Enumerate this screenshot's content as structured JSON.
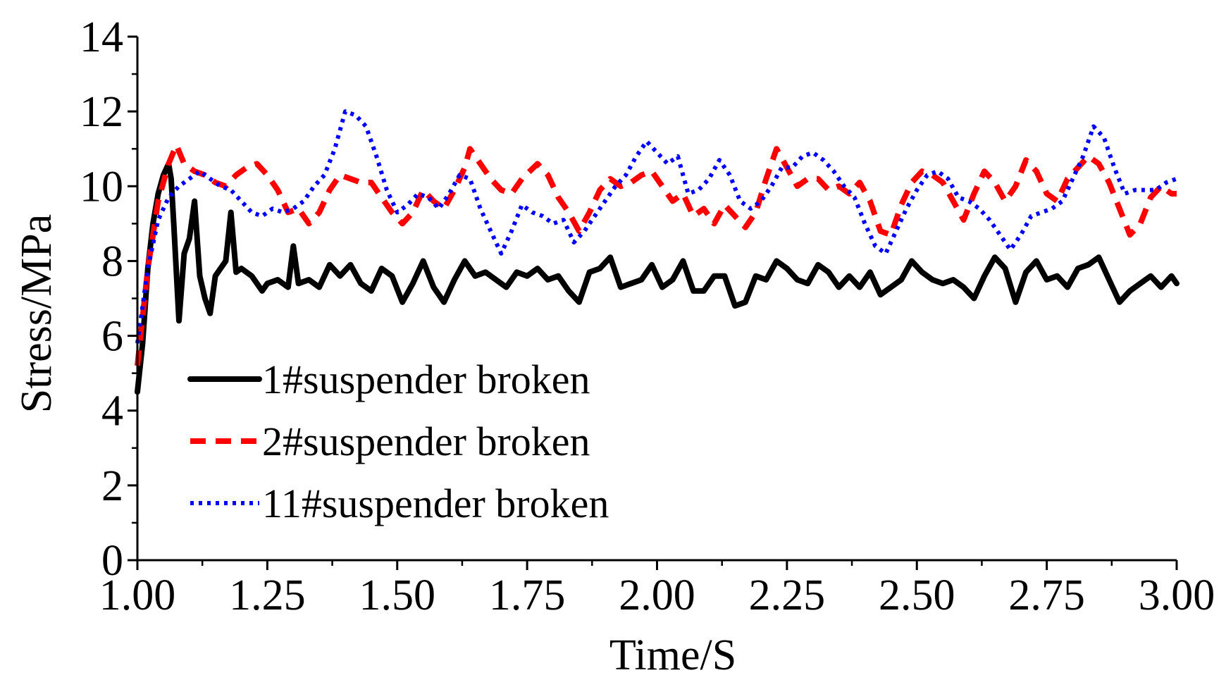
{
  "chart_data": {
    "type": "line",
    "xlabel": "Time/S",
    "ylabel": "Stress/MPa",
    "xlim": [
      1.0,
      3.0
    ],
    "ylim": [
      0,
      14
    ],
    "xticks": [
      "1.00",
      "1.25",
      "1.50",
      "1.75",
      "2.00",
      "2.25",
      "2.50",
      "2.75",
      "3.00"
    ],
    "xtick_values": [
      1.0,
      1.25,
      1.5,
      1.75,
      2.0,
      2.25,
      2.5,
      2.75,
      3.0
    ],
    "yticks": [
      "0",
      "2",
      "4",
      "6",
      "8",
      "10",
      "12",
      "14"
    ],
    "ytick_values": [
      0,
      2,
      4,
      6,
      8,
      10,
      12,
      14
    ],
    "grid": false,
    "legend_position": "lower-left",
    "series": [
      {
        "name": "1#suspender broken",
        "color": "#000000",
        "style": "solid",
        "x": [
          1.0,
          1.01,
          1.02,
          1.03,
          1.04,
          1.05,
          1.06,
          1.065,
          1.07,
          1.08,
          1.09,
          1.1,
          1.11,
          1.12,
          1.13,
          1.14,
          1.15,
          1.16,
          1.17,
          1.18,
          1.19,
          1.2,
          1.22,
          1.24,
          1.25,
          1.27,
          1.29,
          1.3,
          1.31,
          1.33,
          1.35,
          1.37,
          1.39,
          1.41,
          1.43,
          1.45,
          1.47,
          1.49,
          1.51,
          1.53,
          1.55,
          1.57,
          1.59,
          1.61,
          1.63,
          1.65,
          1.67,
          1.69,
          1.71,
          1.73,
          1.75,
          1.77,
          1.79,
          1.81,
          1.83,
          1.85,
          1.87,
          1.89,
          1.91,
          1.93,
          1.95,
          1.97,
          1.99,
          2.01,
          2.03,
          2.05,
          2.07,
          2.09,
          2.11,
          2.13,
          2.15,
          2.17,
          2.19,
          2.21,
          2.23,
          2.25,
          2.27,
          2.29,
          2.31,
          2.33,
          2.35,
          2.37,
          2.39,
          2.41,
          2.43,
          2.45,
          2.47,
          2.49,
          2.51,
          2.53,
          2.55,
          2.57,
          2.59,
          2.61,
          2.63,
          2.65,
          2.67,
          2.69,
          2.71,
          2.73,
          2.75,
          2.77,
          2.79,
          2.81,
          2.83,
          2.85,
          2.87,
          2.89,
          2.91,
          2.93,
          2.95,
          2.97,
          2.99,
          3.0
        ],
        "y": [
          4.5,
          5.8,
          7.8,
          9.0,
          9.8,
          10.3,
          10.6,
          10.2,
          9.0,
          6.4,
          8.2,
          8.6,
          9.6,
          7.6,
          7.0,
          6.6,
          7.6,
          7.8,
          8.0,
          9.3,
          7.7,
          7.8,
          7.6,
          7.2,
          7.4,
          7.5,
          7.3,
          8.4,
          7.4,
          7.5,
          7.3,
          7.9,
          7.6,
          7.9,
          7.4,
          7.2,
          7.8,
          7.6,
          6.9,
          7.4,
          8.0,
          7.3,
          6.9,
          7.5,
          8.0,
          7.6,
          7.7,
          7.5,
          7.3,
          7.7,
          7.6,
          7.8,
          7.5,
          7.6,
          7.2,
          6.9,
          7.7,
          7.8,
          8.1,
          7.3,
          7.4,
          7.5,
          7.9,
          7.3,
          7.5,
          8.0,
          7.2,
          7.2,
          7.6,
          7.6,
          6.8,
          6.9,
          7.6,
          7.5,
          8.0,
          7.8,
          7.5,
          7.4,
          7.9,
          7.7,
          7.3,
          7.6,
          7.3,
          7.7,
          7.1,
          7.3,
          7.5,
          8.0,
          7.7,
          7.5,
          7.4,
          7.5,
          7.3,
          7.0,
          7.6,
          8.1,
          7.8,
          6.9,
          7.7,
          8.0,
          7.5,
          7.6,
          7.3,
          7.8,
          7.9,
          8.1,
          7.5,
          6.9,
          7.2,
          7.4,
          7.6,
          7.3,
          7.6,
          7.4
        ],
        "legend_label": "1#suspender broken"
      },
      {
        "name": "2#suspender broken",
        "color": "#ff0000",
        "style": "dashed",
        "x": [
          1.0,
          1.02,
          1.04,
          1.06,
          1.075,
          1.09,
          1.11,
          1.13,
          1.15,
          1.17,
          1.19,
          1.21,
          1.23,
          1.25,
          1.27,
          1.29,
          1.31,
          1.33,
          1.35,
          1.37,
          1.39,
          1.41,
          1.43,
          1.45,
          1.47,
          1.49,
          1.51,
          1.53,
          1.55,
          1.57,
          1.59,
          1.61,
          1.63,
          1.64,
          1.66,
          1.68,
          1.7,
          1.72,
          1.74,
          1.77,
          1.79,
          1.81,
          1.83,
          1.85,
          1.87,
          1.89,
          1.91,
          1.93,
          1.95,
          1.97,
          1.99,
          2.01,
          2.03,
          2.05,
          2.07,
          2.09,
          2.11,
          2.13,
          2.15,
          2.17,
          2.19,
          2.21,
          2.23,
          2.25,
          2.27,
          2.29,
          2.31,
          2.33,
          2.35,
          2.37,
          2.39,
          2.41,
          2.43,
          2.45,
          2.47,
          2.49,
          2.51,
          2.53,
          2.55,
          2.57,
          2.59,
          2.61,
          2.63,
          2.65,
          2.67,
          2.69,
          2.71,
          2.73,
          2.75,
          2.77,
          2.79,
          2.81,
          2.83,
          2.85,
          2.87,
          2.89,
          2.91,
          2.93,
          2.95,
          2.97,
          2.99,
          3.0
        ],
        "y": [
          5.2,
          7.8,
          9.6,
          10.6,
          11.1,
          10.6,
          10.4,
          10.3,
          10.1,
          10.0,
          10.3,
          10.5,
          10.6,
          10.3,
          9.9,
          9.3,
          9.4,
          9.0,
          9.3,
          9.9,
          10.3,
          10.2,
          10.1,
          10.1,
          9.7,
          9.3,
          9.0,
          9.3,
          9.9,
          9.6,
          9.4,
          9.9,
          10.5,
          11.0,
          10.6,
          10.2,
          9.9,
          9.8,
          10.2,
          10.6,
          10.3,
          9.7,
          9.3,
          8.8,
          9.3,
          9.9,
          10.2,
          10.0,
          10.1,
          10.3,
          10.4,
          10.0,
          9.6,
          9.8,
          9.2,
          9.4,
          9.0,
          9.5,
          9.2,
          8.9,
          9.3,
          10.2,
          11.0,
          10.5,
          10.0,
          10.2,
          10.2,
          9.9,
          10.0,
          9.8,
          10.1,
          9.6,
          8.8,
          8.7,
          9.5,
          10.1,
          10.4,
          10.3,
          10.1,
          9.6,
          9.1,
          9.8,
          10.4,
          10.1,
          9.6,
          10.0,
          10.7,
          10.4,
          9.8,
          9.6,
          10.2,
          10.5,
          10.8,
          10.6,
          10.1,
          9.4,
          8.7,
          9.0,
          9.7,
          10.0,
          9.8,
          9.8
        ],
        "legend_label": "2#suspender broken"
      },
      {
        "name": "11#suspender broken",
        "color": "#0000ff",
        "style": "dotted",
        "x": [
          1.0,
          1.02,
          1.04,
          1.06,
          1.08,
          1.1,
          1.12,
          1.14,
          1.16,
          1.18,
          1.2,
          1.22,
          1.24,
          1.26,
          1.28,
          1.3,
          1.32,
          1.34,
          1.36,
          1.38,
          1.4,
          1.42,
          1.44,
          1.46,
          1.48,
          1.5,
          1.52,
          1.54,
          1.56,
          1.58,
          1.6,
          1.62,
          1.64,
          1.66,
          1.68,
          1.7,
          1.72,
          1.74,
          1.76,
          1.78,
          1.8,
          1.82,
          1.84,
          1.86,
          1.88,
          1.9,
          1.92,
          1.94,
          1.96,
          1.98,
          2.0,
          2.02,
          2.04,
          2.06,
          2.08,
          2.1,
          2.12,
          2.14,
          2.16,
          2.18,
          2.2,
          2.22,
          2.24,
          2.26,
          2.28,
          2.3,
          2.32,
          2.34,
          2.36,
          2.38,
          2.4,
          2.42,
          2.44,
          2.46,
          2.48,
          2.5,
          2.52,
          2.54,
          2.56,
          2.58,
          2.6,
          2.62,
          2.64,
          2.66,
          2.68,
          2.7,
          2.72,
          2.74,
          2.76,
          2.78,
          2.8,
          2.82,
          2.84,
          2.86,
          2.88,
          2.9,
          2.92,
          2.94,
          2.96,
          2.98,
          3.0
        ],
        "y": [
          5.8,
          7.8,
          9.1,
          9.7,
          10.0,
          10.2,
          10.4,
          10.2,
          10.0,
          9.9,
          9.6,
          9.3,
          9.2,
          9.4,
          9.3,
          9.4,
          9.6,
          10.0,
          10.3,
          11.0,
          12.0,
          11.9,
          11.6,
          10.8,
          9.9,
          9.3,
          9.5,
          9.8,
          9.7,
          9.4,
          9.8,
          10.3,
          10.2,
          9.4,
          8.8,
          8.2,
          8.8,
          9.5,
          9.3,
          9.2,
          9.0,
          9.1,
          8.5,
          8.8,
          9.2,
          9.6,
          10.0,
          10.3,
          10.8,
          11.2,
          10.9,
          10.6,
          10.8,
          9.8,
          9.9,
          10.2,
          10.7,
          10.3,
          9.6,
          9.4,
          9.6,
          10.0,
          10.5,
          10.5,
          10.8,
          10.9,
          10.7,
          10.4,
          10.0,
          9.7,
          9.0,
          8.4,
          8.2,
          8.8,
          9.4,
          9.9,
          10.3,
          10.4,
          10.2,
          9.7,
          9.6,
          9.4,
          9.1,
          8.7,
          8.3,
          8.7,
          9.2,
          9.3,
          9.4,
          9.6,
          10.2,
          10.8,
          11.6,
          11.3,
          10.5,
          9.8,
          9.9,
          9.9,
          9.9,
          10.1,
          10.2
        ],
        "legend_label": "11#suspender broken"
      }
    ]
  }
}
